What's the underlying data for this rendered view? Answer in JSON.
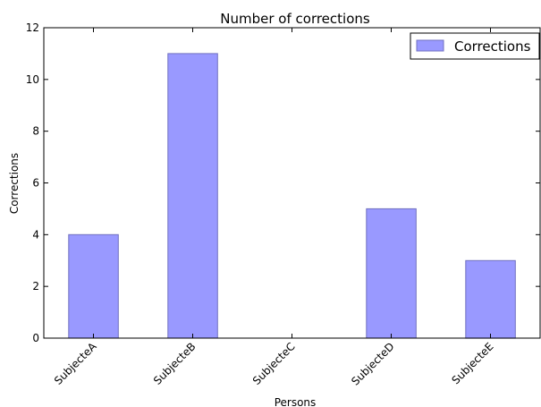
{
  "chart_data": {
    "type": "bar",
    "title": "Number of corrections",
    "xlabel": "Persons",
    "ylabel": "Corrections",
    "categories": [
      "SubjecteA",
      "SubjecteB",
      "SubjecteC",
      "SubjecteD",
      "SubjecteE"
    ],
    "series": [
      {
        "name": "Corrections",
        "values": [
          4,
          11,
          0,
          5,
          3
        ],
        "color": "#9999ff",
        "edge_color": "#7070c0"
      }
    ],
    "ylim": [
      0,
      12
    ],
    "yticks": [
      0,
      2,
      4,
      6,
      8,
      10,
      12
    ],
    "grid": false,
    "legend_position": "top-right"
  }
}
